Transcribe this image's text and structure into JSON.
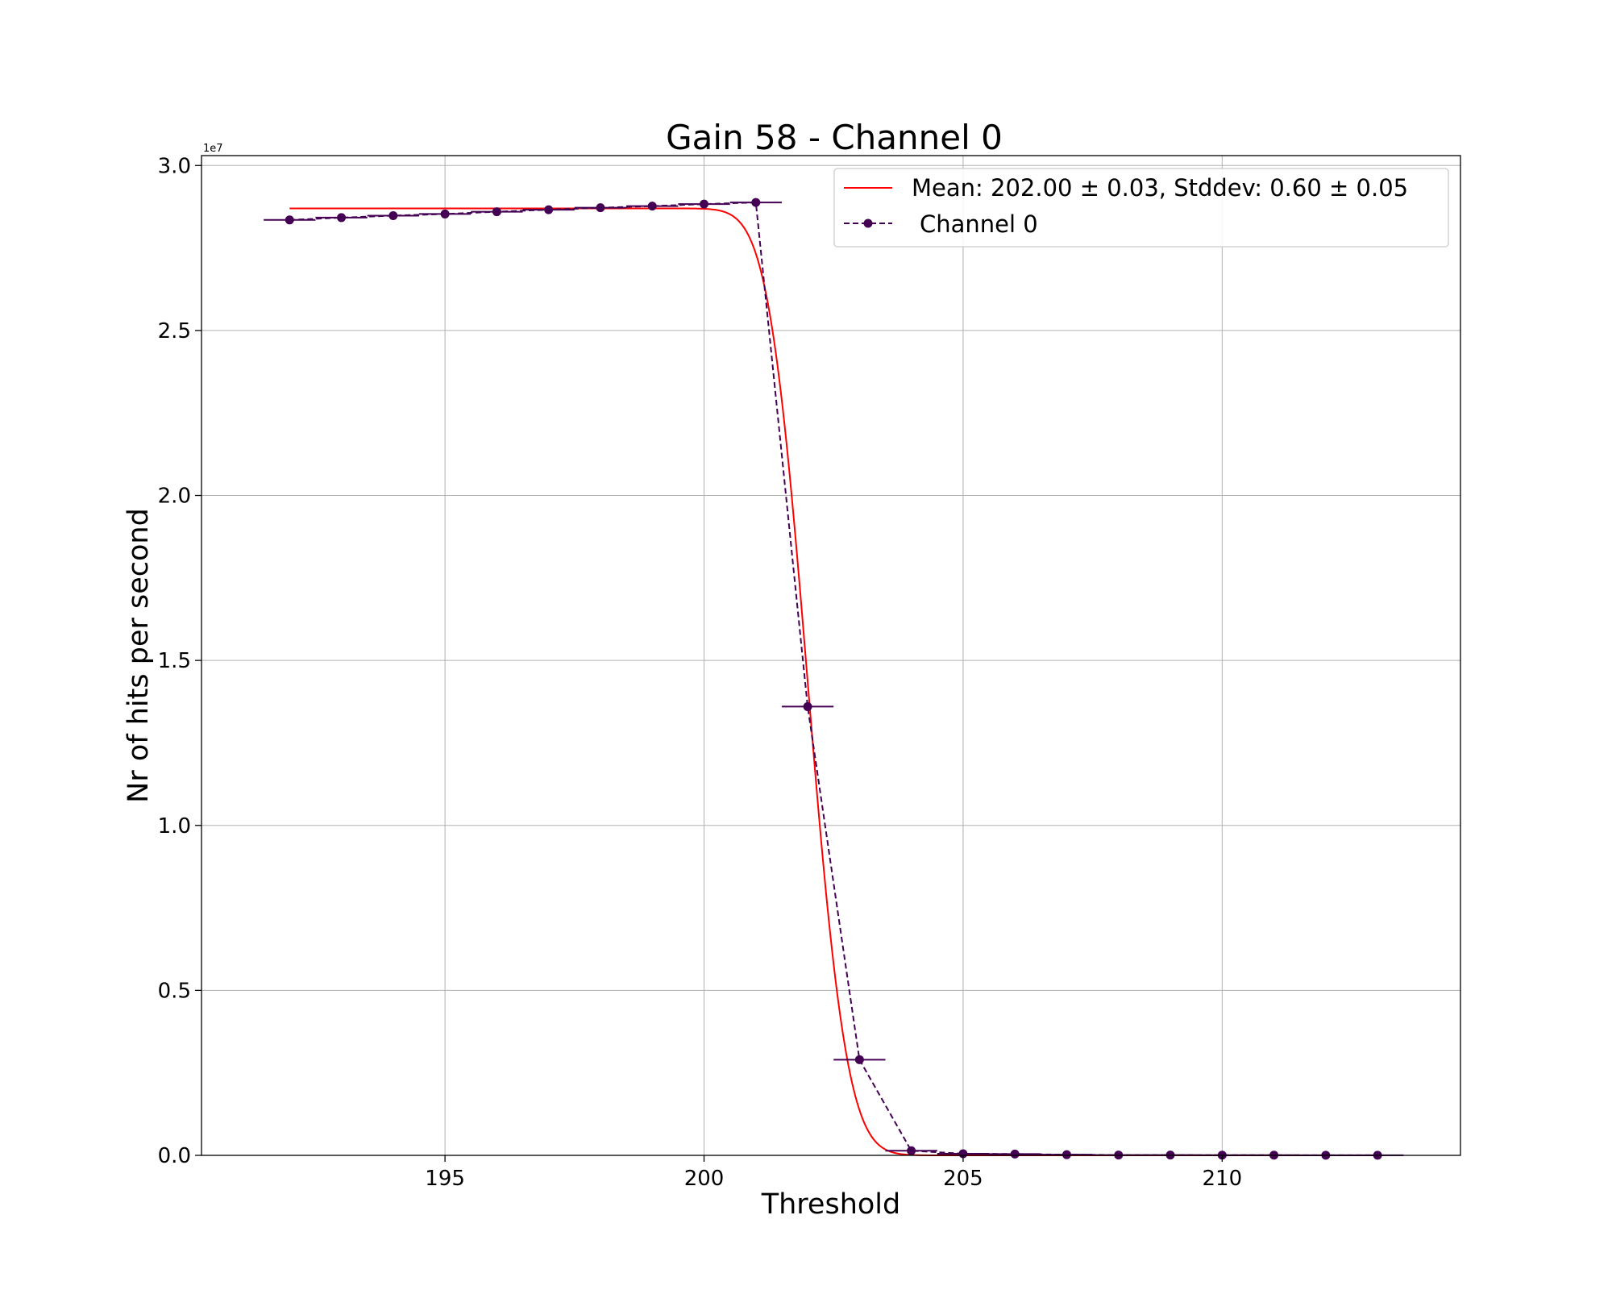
{
  "chart_data": {
    "type": "line",
    "title": "Gain 58 - Channel 0",
    "xlabel": "Threshold",
    "ylabel": "Nr of hits per second",
    "y_offset_label": "1e7",
    "xlim": [
      190.3,
      214.6
    ],
    "ylim": [
      0,
      30300000
    ],
    "grid": true,
    "legend_placement": "upper right",
    "x_ticks": [
      195,
      200,
      205,
      210
    ],
    "y_ticks": [
      0,
      5000000,
      10000000,
      15000000,
      20000000,
      25000000,
      30000000
    ],
    "y_tick_labels": [
      "0.0",
      "0.5",
      "1.0",
      "1.5",
      "2.0",
      "2.5",
      "3.0"
    ],
    "series": [
      {
        "name": "Channel 0",
        "kind": "data",
        "color": "#440154",
        "style": "dashed-with-markers",
        "x": [
          192,
          193,
          194,
          195,
          196,
          197,
          198,
          199,
          200,
          201,
          202,
          203,
          204,
          205,
          206,
          207,
          208,
          209,
          210,
          211,
          212,
          213
        ],
        "y": [
          28350000,
          28420000,
          28480000,
          28530000,
          28600000,
          28660000,
          28720000,
          28770000,
          28830000,
          28880000,
          13600000,
          2900000,
          140000,
          50000,
          40000,
          20000,
          10000,
          10000,
          5000,
          5000,
          3000,
          2000
        ],
        "x_err": 0.5
      },
      {
        "name": "Mean: 202.00 ± 0.03, Stddev: 0.60 ± 0.05",
        "kind": "fit",
        "color": "#ff0000",
        "style": "solid",
        "model": "complementary error function step",
        "amplitude": 28700000,
        "mean": 202.0,
        "stddev": 0.6,
        "x_range": [
          192,
          213
        ]
      }
    ]
  }
}
